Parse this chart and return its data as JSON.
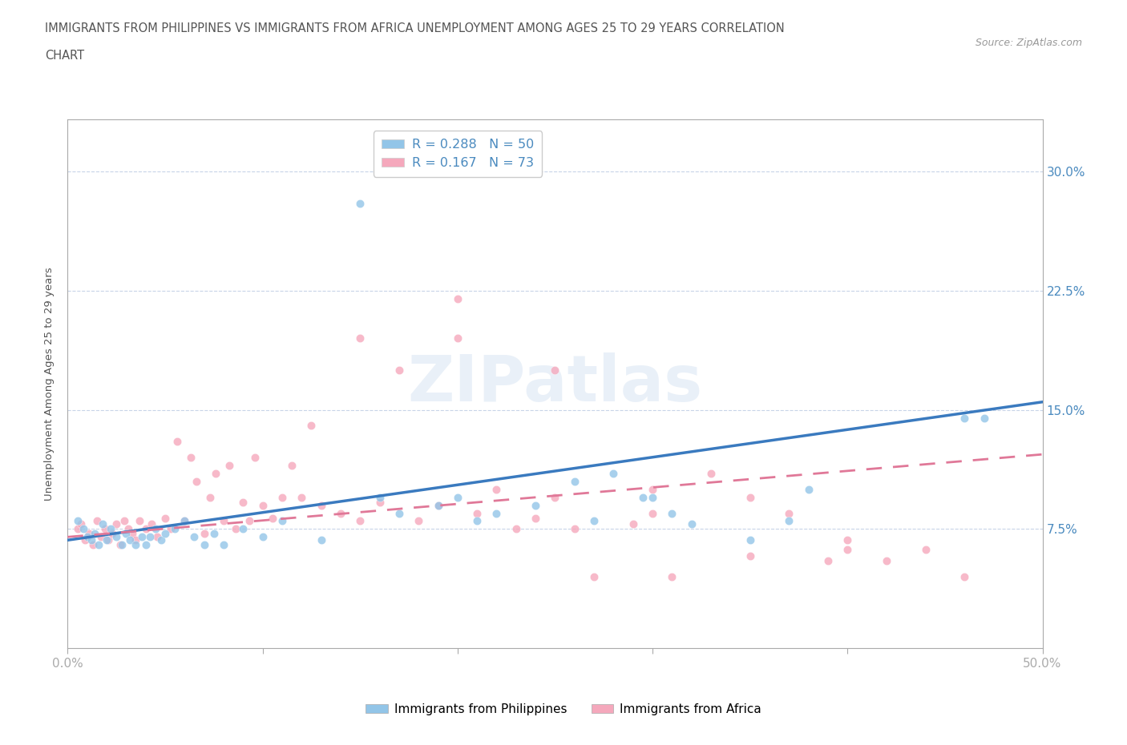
{
  "title_line1": "IMMIGRANTS FROM PHILIPPINES VS IMMIGRANTS FROM AFRICA UNEMPLOYMENT AMONG AGES 25 TO 29 YEARS CORRELATION",
  "title_line2": "CHART",
  "source_text": "Source: ZipAtlas.com",
  "ylabel": "Unemployment Among Ages 25 to 29 years",
  "xlim": [
    0.0,
    0.5
  ],
  "ylim": [
    0.0,
    0.333
  ],
  "yticks": [
    0.075,
    0.15,
    0.225,
    0.3
  ],
  "ytick_labels": [
    "7.5%",
    "15.0%",
    "22.5%",
    "30.0%"
  ],
  "philippines_color": "#92c5e8",
  "africa_color": "#f5a8bc",
  "trend_blue": "#3a7abf",
  "trend_pink": "#e07898",
  "philippines_R": 0.288,
  "philippines_N": 50,
  "africa_R": 0.167,
  "africa_N": 73,
  "philippines_scatter_x": [
    0.005,
    0.008,
    0.01,
    0.012,
    0.014,
    0.016,
    0.018,
    0.02,
    0.022,
    0.025,
    0.028,
    0.03,
    0.032,
    0.035,
    0.038,
    0.04,
    0.042,
    0.045,
    0.048,
    0.05,
    0.055,
    0.06,
    0.065,
    0.07,
    0.075,
    0.08,
    0.09,
    0.1,
    0.11,
    0.13,
    0.15,
    0.16,
    0.17,
    0.19,
    0.2,
    0.21,
    0.22,
    0.24,
    0.26,
    0.27,
    0.28,
    0.295,
    0.3,
    0.31,
    0.32,
    0.35,
    0.37,
    0.38,
    0.46,
    0.47
  ],
  "philippines_scatter_y": [
    0.08,
    0.075,
    0.07,
    0.068,
    0.072,
    0.065,
    0.078,
    0.068,
    0.075,
    0.07,
    0.065,
    0.072,
    0.068,
    0.065,
    0.07,
    0.065,
    0.07,
    0.075,
    0.068,
    0.072,
    0.075,
    0.08,
    0.07,
    0.065,
    0.072,
    0.065,
    0.075,
    0.07,
    0.08,
    0.068,
    0.28,
    0.095,
    0.085,
    0.09,
    0.095,
    0.08,
    0.085,
    0.09,
    0.105,
    0.08,
    0.11,
    0.095,
    0.095,
    0.085,
    0.078,
    0.068,
    0.08,
    0.1,
    0.145,
    0.145
  ],
  "africa_scatter_x": [
    0.005,
    0.007,
    0.009,
    0.011,
    0.013,
    0.015,
    0.017,
    0.019,
    0.021,
    0.023,
    0.025,
    0.027,
    0.029,
    0.031,
    0.033,
    0.035,
    0.037,
    0.04,
    0.043,
    0.046,
    0.05,
    0.053,
    0.056,
    0.06,
    0.063,
    0.066,
    0.07,
    0.073,
    0.076,
    0.08,
    0.083,
    0.086,
    0.09,
    0.093,
    0.096,
    0.1,
    0.105,
    0.11,
    0.115,
    0.12,
    0.125,
    0.13,
    0.14,
    0.15,
    0.16,
    0.17,
    0.18,
    0.19,
    0.2,
    0.21,
    0.22,
    0.23,
    0.24,
    0.25,
    0.26,
    0.27,
    0.29,
    0.3,
    0.31,
    0.33,
    0.35,
    0.37,
    0.39,
    0.4,
    0.42,
    0.44,
    0.46,
    0.15,
    0.2,
    0.25,
    0.3,
    0.35,
    0.4
  ],
  "africa_scatter_y": [
    0.075,
    0.078,
    0.068,
    0.072,
    0.065,
    0.08,
    0.07,
    0.075,
    0.068,
    0.072,
    0.078,
    0.065,
    0.08,
    0.075,
    0.072,
    0.068,
    0.08,
    0.075,
    0.078,
    0.07,
    0.082,
    0.075,
    0.13,
    0.08,
    0.12,
    0.105,
    0.072,
    0.095,
    0.11,
    0.08,
    0.115,
    0.075,
    0.092,
    0.08,
    0.12,
    0.09,
    0.082,
    0.095,
    0.115,
    0.095,
    0.14,
    0.09,
    0.085,
    0.08,
    0.092,
    0.175,
    0.08,
    0.09,
    0.195,
    0.085,
    0.1,
    0.075,
    0.082,
    0.095,
    0.075,
    0.045,
    0.078,
    0.085,
    0.045,
    0.11,
    0.058,
    0.085,
    0.055,
    0.068,
    0.055,
    0.062,
    0.045,
    0.195,
    0.22,
    0.175,
    0.1,
    0.095,
    0.062
  ],
  "phil_trend_x": [
    0.0,
    0.5
  ],
  "phil_trend_y": [
    0.068,
    0.155
  ],
  "africa_trend_x": [
    0.0,
    0.5
  ],
  "africa_trend_y": [
    0.07,
    0.122
  ],
  "background_color": "#ffffff",
  "grid_color": "#c8d4e8",
  "axis_color": "#aaaaaa",
  "title_color": "#555555",
  "tick_color": "#4a8abf",
  "watermark_text": "ZIPatlas",
  "watermark_color": "#d0dff0",
  "watermark_alpha": 0.45
}
